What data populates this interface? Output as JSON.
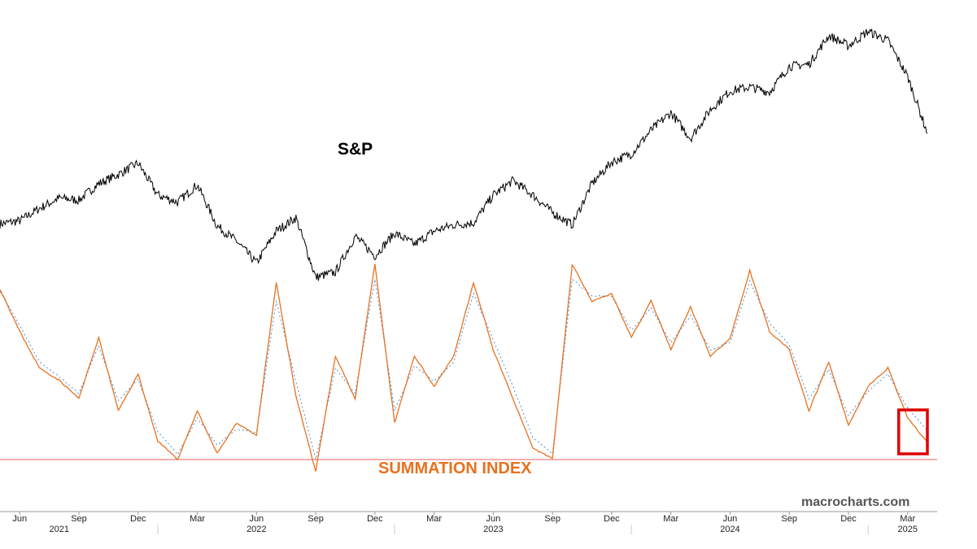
{
  "chart_data": {
    "type": "line",
    "panels": [
      {
        "name": "S&P",
        "label": "S&P",
        "color": "#000000",
        "x": [
          "2021-05",
          "2021-06",
          "2021-07",
          "2021-08",
          "2021-09",
          "2021-10",
          "2021-11",
          "2021-12",
          "2022-01",
          "2022-02",
          "2022-03",
          "2022-04",
          "2022-05",
          "2022-06",
          "2022-07",
          "2022-08",
          "2022-09",
          "2022-10",
          "2022-11",
          "2022-12",
          "2023-01",
          "2023-02",
          "2023-03",
          "2023-04",
          "2023-05",
          "2023-06",
          "2023-07",
          "2023-08",
          "2023-09",
          "2023-10",
          "2023-11",
          "2023-12",
          "2024-01",
          "2024-02",
          "2024-03",
          "2024-04",
          "2024-05",
          "2024-06",
          "2024-07",
          "2024-08",
          "2024-09",
          "2024-10",
          "2024-11",
          "2024-12",
          "2025-01",
          "2025-02",
          "2025-03",
          "2025-04"
        ],
        "values": [
          4170,
          4200,
          4320,
          4420,
          4400,
          4560,
          4650,
          4760,
          4450,
          4380,
          4550,
          4150,
          4000,
          3790,
          4100,
          4230,
          3650,
          3700,
          4050,
          3860,
          4080,
          3970,
          4100,
          4160,
          4180,
          4450,
          4590,
          4450,
          4280,
          4160,
          4560,
          4770,
          4850,
          5080,
          5250,
          5000,
          5280,
          5460,
          5500,
          5450,
          5700,
          5720,
          6000,
          5900,
          6040,
          5950,
          5600,
          5050
        ],
        "ylim": [
          3500,
          6250
        ]
      },
      {
        "name": "Summation Index",
        "label": "SUMMATION INDEX",
        "color": "#e8711f",
        "signal_color": "#4a90d9",
        "reference_line": -600,
        "reference_color": "#f08080",
        "x": [
          "2021-05",
          "2021-06",
          "2021-07",
          "2021-08",
          "2021-09",
          "2021-10",
          "2021-11",
          "2021-12",
          "2022-01",
          "2022-02",
          "2022-03",
          "2022-04",
          "2022-05",
          "2022-06",
          "2022-07",
          "2022-08",
          "2022-09",
          "2022-10",
          "2022-11",
          "2022-12",
          "2023-01",
          "2023-02",
          "2023-03",
          "2023-04",
          "2023-05",
          "2023-06",
          "2023-07",
          "2023-08",
          "2023-09",
          "2023-10",
          "2023-11",
          "2023-12",
          "2024-01",
          "2024-02",
          "2024-03",
          "2024-04",
          "2024-05",
          "2024-06",
          "2024-07",
          "2024-08",
          "2024-09",
          "2024-10",
          "2024-11",
          "2024-12",
          "2025-01",
          "2025-02",
          "2025-03",
          "2025-04"
        ],
        "values": [
          800,
          450,
          150,
          50,
          -100,
          400,
          -200,
          100,
          -450,
          -600,
          -200,
          -550,
          -300,
          -400,
          850,
          -80,
          -700,
          250,
          -100,
          1000,
          -300,
          250,
          0,
          250,
          850,
          300,
          -100,
          -510,
          -590,
          1000,
          700,
          760,
          400,
          700,
          300,
          650,
          250,
          390,
          950,
          450,
          300,
          -200,
          200,
          -320,
          0,
          150,
          -260,
          -460
        ],
        "signal": [
          780,
          500,
          200,
          80,
          -60,
          330,
          -120,
          60,
          -370,
          -560,
          -260,
          -480,
          -350,
          -380,
          700,
          40,
          -600,
          150,
          -60,
          880,
          -200,
          170,
          40,
          200,
          760,
          380,
          0,
          -420,
          -550,
          880,
          740,
          740,
          460,
          640,
          360,
          580,
          300,
          360,
          860,
          520,
          340,
          -100,
          140,
          -240,
          -40,
          100,
          -180,
          -360
        ],
        "ylim": [
          -800,
          1100
        ]
      }
    ],
    "x_ticks": [
      "Jun",
      "Sep",
      "Dec",
      "Mar",
      "Jun",
      "Sep",
      "Dec",
      "Mar",
      "Jun",
      "Sep",
      "Dec",
      "Mar",
      "Jun",
      "Sep",
      "Dec",
      "Mar"
    ],
    "x_tick_dates": [
      "2021-06",
      "2021-09",
      "2021-12",
      "2022-03",
      "2022-06",
      "2022-09",
      "2022-12",
      "2023-03",
      "2023-06",
      "2023-09",
      "2023-12",
      "2024-03",
      "2024-06",
      "2024-09",
      "2024-12",
      "2025-03"
    ],
    "year_labels": [
      "2021",
      "2022",
      "2023",
      "2024",
      "2025"
    ],
    "year_label_dates": [
      "2021-08",
      "2022-06",
      "2023-06",
      "2024-06",
      "2025-03"
    ],
    "highlight_box": {
      "from": "2025-03",
      "to": "2025-04",
      "color": "#dd0000"
    },
    "grid": false,
    "legend": "none"
  },
  "watermark": "macrocharts.com"
}
